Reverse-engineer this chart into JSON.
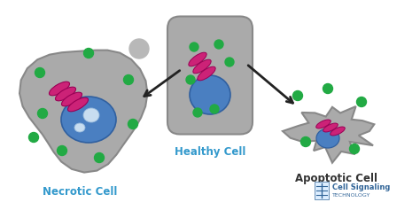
{
  "background_color": "#ffffff",
  "cell_gray": "#aaaaaa",
  "cell_gray_edge": "#888888",
  "nucleus_blue": "#4a7fc1",
  "nucleus_blue_edge": "#3060a0",
  "mito_pink": "#cc2277",
  "mito_pink_edge": "#990055",
  "green_dot": "#22aa44",
  "gray_dot": "#aaaaaa",
  "label_blue": "#3399cc",
  "label_dark": "#333333",
  "healthy_label": "Healthy Cell",
  "necrotic_label": "Necrotic Cell",
  "apoptotic_label": "Apoptotic Cell",
  "logo_text1": "Cell Signaling",
  "logo_text2": "TECHNOLOGY",
  "logo_blue": "#336699"
}
